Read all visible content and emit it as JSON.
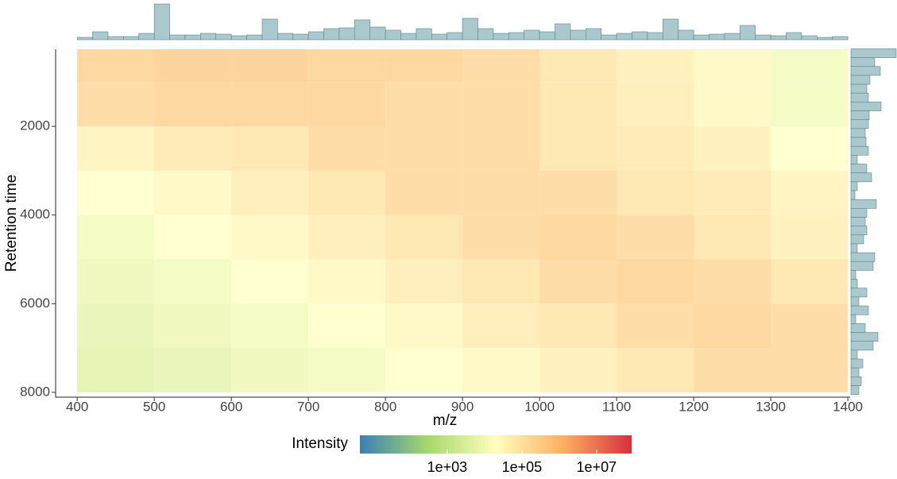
{
  "chart_data": {
    "type": "heatmap",
    "xlabel": "m/z",
    "ylabel": "Retention time",
    "xlim": [
      372,
      1403
    ],
    "xticks": [
      400,
      500,
      600,
      700,
      800,
      900,
      1000,
      1100,
      1200,
      1300,
      1400
    ],
    "ylim": [
      8110,
      260
    ],
    "yticks": [
      2000,
      4000,
      6000,
      8000
    ],
    "heatmap": {
      "x_bins": [
        400,
        500,
        600,
        700,
        800,
        900,
        1000,
        1100,
        1200,
        1300,
        1400
      ],
      "y_bins": [
        260,
        1000,
        2000,
        3000,
        4000,
        5000,
        6000,
        7000,
        8000
      ],
      "values": [
        [
          300000,
          400000,
          400000,
          300000,
          300000,
          200000,
          100000,
          50000,
          30000,
          10000
        ],
        [
          200000,
          300000,
          300000,
          300000,
          200000,
          200000,
          100000,
          60000,
          30000,
          10000
        ],
        [
          40000,
          80000,
          100000,
          200000,
          200000,
          200000,
          100000,
          80000,
          50000,
          20000
        ],
        [
          20000,
          30000,
          60000,
          100000,
          200000,
          200000,
          200000,
          100000,
          80000,
          40000
        ],
        [
          10000,
          20000,
          30000,
          60000,
          100000,
          200000,
          300000,
          200000,
          100000,
          50000
        ],
        [
          8000,
          10000,
          20000,
          30000,
          60000,
          100000,
          200000,
          300000,
          200000,
          100000
        ],
        [
          5000,
          8000,
          10000,
          20000,
          30000,
          60000,
          100000,
          200000,
          300000,
          200000
        ],
        [
          4000,
          5000,
          8000,
          10000,
          20000,
          30000,
          50000,
          100000,
          200000,
          200000
        ]
      ]
    },
    "top_histogram": {
      "color": "#a9c9cc",
      "edgecolor": "#5e8489",
      "bins": [
        400,
        420,
        440,
        460,
        480,
        500,
        520,
        540,
        560,
        580,
        600,
        620,
        640,
        660,
        680,
        700,
        720,
        740,
        760,
        780,
        800,
        820,
        840,
        860,
        880,
        900,
        920,
        940,
        960,
        980,
        1000,
        1020,
        1040,
        1060,
        1080,
        1100,
        1120,
        1140,
        1160,
        1180,
        1200,
        1220,
        1240,
        1260,
        1280,
        1300,
        1320,
        1340,
        1360,
        1380,
        1400
      ],
      "values": [
        3,
        10,
        4,
        4,
        8,
        45,
        6,
        6,
        8,
        7,
        5,
        6,
        26,
        8,
        7,
        10,
        14,
        15,
        25,
        16,
        12,
        8,
        14,
        7,
        9,
        27,
        14,
        8,
        9,
        12,
        10,
        20,
        12,
        14,
        6,
        8,
        10,
        9,
        26,
        12,
        6,
        7,
        8,
        18,
        6,
        5,
        9,
        5,
        3,
        4
      ]
    },
    "right_histogram": {
      "color": "#a9c9cc",
      "edgecolor": "#5e8489",
      "bins": [
        250,
        450,
        650,
        850,
        1050,
        1250,
        1450,
        1650,
        1850,
        2050,
        2250,
        2450,
        2650,
        2850,
        3050,
        3250,
        3450,
        3650,
        3850,
        4050,
        4250,
        4450,
        4650,
        4850,
        5050,
        5250,
        5450,
        5650,
        5850,
        6050,
        6250,
        6450,
        6650,
        6850,
        7050,
        7250,
        7450,
        7650,
        7850,
        8050
      ],
      "values": [
        57,
        30,
        37,
        24,
        20,
        22,
        38,
        23,
        22,
        18,
        19,
        22,
        8,
        20,
        26,
        8,
        5,
        32,
        20,
        18,
        20,
        16,
        8,
        30,
        28,
        6,
        8,
        20,
        10,
        22,
        6,
        18,
        34,
        28,
        8,
        15,
        10,
        13,
        10
      ]
    },
    "colorbar": {
      "title": "Intensity",
      "log": true,
      "lim": [
        4.6,
        87000000
      ],
      "colors": [
        "#3a7fb8",
        "#a6d96a",
        "#ffffbf",
        "#fdae61",
        "#d7303f"
      ],
      "ticks": [
        {
          "value": 1000,
          "label": "1e+03"
        },
        {
          "value": 100000,
          "label": "1e+05"
        },
        {
          "value": 10000000,
          "label": "1e+07"
        }
      ]
    }
  }
}
